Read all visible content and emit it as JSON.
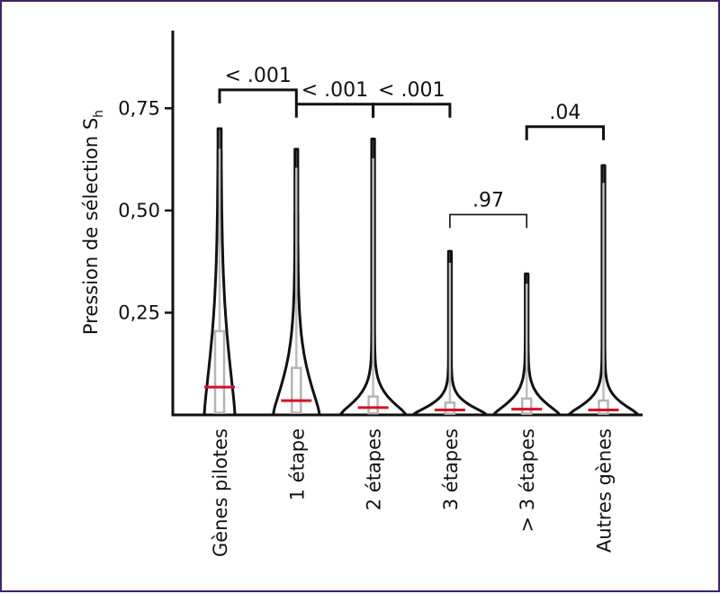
{
  "chart_data": {
    "type": "violin",
    "ylabel": "Pression  de sélection S",
    "ylabel_subscript": "h",
    "ylim": [
      0,
      0.94
    ],
    "yticks": [
      {
        "value": 0.25,
        "label": "0,25"
      },
      {
        "value": 0.5,
        "label": "0,50"
      },
      {
        "value": 0.75,
        "label": "0,75"
      }
    ],
    "categories": [
      "Gènes pilotes",
      "1 étape",
      "2 étapes",
      "3 étapes",
      "> 3 étapes",
      "Autres gènes"
    ],
    "groups": [
      {
        "category": "Gènes pilotes",
        "median": 0.068,
        "q1": 0.005,
        "q3": 0.205,
        "max": 0.7,
        "violin_width": 0.35
      },
      {
        "category": "1 étape",
        "median": 0.035,
        "q1": 0.005,
        "q3": 0.115,
        "max": 0.65,
        "violin_width": 0.55
      },
      {
        "category": "2 étapes",
        "median": 0.018,
        "q1": 0.004,
        "q3": 0.045,
        "max": 0.675,
        "violin_width": 0.8
      },
      {
        "category": "3 étapes",
        "median": 0.012,
        "q1": 0.003,
        "q3": 0.03,
        "max": 0.4,
        "violin_width": 0.9
      },
      {
        "category": "> 3 étapes",
        "median": 0.014,
        "q1": 0.003,
        "q3": 0.04,
        "max": 0.345,
        "violin_width": 0.8
      },
      {
        "category": "Autres gènes",
        "median": 0.012,
        "q1": 0.003,
        "q3": 0.035,
        "max": 0.61,
        "violin_width": 0.85
      }
    ],
    "comparisons": [
      {
        "from": 0,
        "to": 1,
        "label": "< .001",
        "level": 0.795,
        "bold": true
      },
      {
        "from": 1,
        "to": 2,
        "label": "< .001",
        "level": 0.76,
        "bold": true
      },
      {
        "from": 2,
        "to": 3,
        "label": "< .001",
        "level": 0.76,
        "bold": true
      },
      {
        "from": 3,
        "to": 4,
        "label": ".97",
        "level": 0.49,
        "bold": false
      },
      {
        "from": 4,
        "to": 5,
        "label": ".04",
        "level": 0.705,
        "bold": true
      }
    ],
    "colors": {
      "axis": "#111111",
      "violin_outline": "#111111",
      "box": "#b5b5b5",
      "whisker": "#bdbdbd",
      "median": "#d8112a",
      "frame": "#3d2466"
    }
  }
}
